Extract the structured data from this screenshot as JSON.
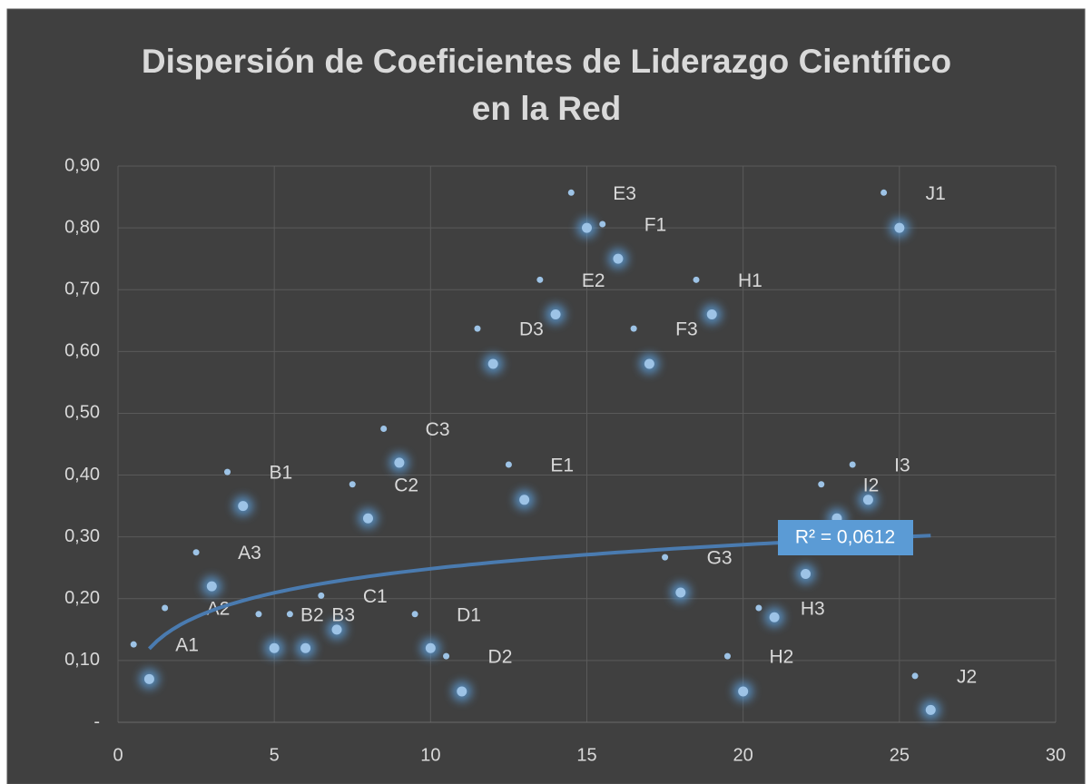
{
  "chart_data": {
    "type": "scatter",
    "title": [
      "Dispersión de Coeficientes de Liderazgo Científico",
      "en la Red"
    ],
    "xlim": [
      0,
      30
    ],
    "xticks": [
      0,
      5,
      10,
      15,
      20,
      25,
      30
    ],
    "ylim": [
      0,
      0.9
    ],
    "yticks": [
      {
        "value": 0,
        "label": "-"
      },
      {
        "value": 0.1,
        "label": "0,10"
      },
      {
        "value": 0.2,
        "label": "0,20"
      },
      {
        "value": 0.3,
        "label": "0,30"
      },
      {
        "value": 0.4,
        "label": "0,40"
      },
      {
        "value": 0.5,
        "label": "0,50"
      },
      {
        "value": 0.6,
        "label": "0,60"
      },
      {
        "value": 0.7,
        "label": "0,70"
      },
      {
        "value": 0.8,
        "label": "0,80"
      },
      {
        "value": 0.9,
        "label": "0,90"
      }
    ],
    "grid": true,
    "series": [
      {
        "color": "#9dc3e6",
        "style": "glow",
        "x": [
          1,
          3,
          4,
          5,
          6,
          7,
          8,
          9,
          10,
          11,
          12,
          13,
          14,
          15,
          16,
          17,
          18,
          19,
          20,
          21,
          22,
          23,
          24,
          25,
          26
        ],
        "values": [
          0.07,
          0.22,
          0.35,
          0.12,
          0.12,
          0.15,
          0.33,
          0.42,
          0.12,
          0.05,
          0.58,
          0.36,
          0.66,
          0.8,
          0.75,
          0.58,
          0.21,
          0.66,
          0.05,
          0.17,
          0.24,
          0.33,
          0.36,
          0.8,
          0.02
        ]
      },
      {
        "color": "#9dc3e6",
        "style": "dot",
        "x": [
          0.5,
          1.5,
          2.5,
          3.5,
          4.5,
          5.5,
          6.5,
          7.5,
          8.5,
          9.5,
          10.5,
          11.5,
          12.5,
          13.5,
          14.5,
          15.5,
          16.5,
          17.5,
          18.5,
          19.5,
          20.5,
          22.5,
          23.5,
          24.5,
          25.5
        ],
        "values": [
          0.126,
          0.185,
          0.275,
          0.405,
          0.175,
          0.175,
          0.205,
          0.385,
          0.475,
          0.175,
          0.107,
          0.637,
          0.417,
          0.716,
          0.857,
          0.806,
          0.637,
          0.267,
          0.716,
          0.107,
          0.185,
          0.385,
          0.417,
          0.857,
          0.075
        ],
        "labels": [
          "A1",
          "A2",
          "A3",
          "B1",
          "B2",
          "B3",
          "C1",
          "C2",
          "C3",
          "D1",
          "D2",
          "D3",
          "E1",
          "E2",
          "E3",
          "F1",
          "F3",
          "G3",
          "H1",
          "H2",
          "H3",
          "I2",
          "I3",
          "J1",
          "J2"
        ]
      }
    ],
    "trendline": {
      "type": "log",
      "a": 0.119,
      "b": 0.0562,
      "xrange": [
        1,
        26
      ],
      "color": "#4a7bb0",
      "label": "R² = 0,0612",
      "label_color": "#5b9bd5"
    }
  }
}
